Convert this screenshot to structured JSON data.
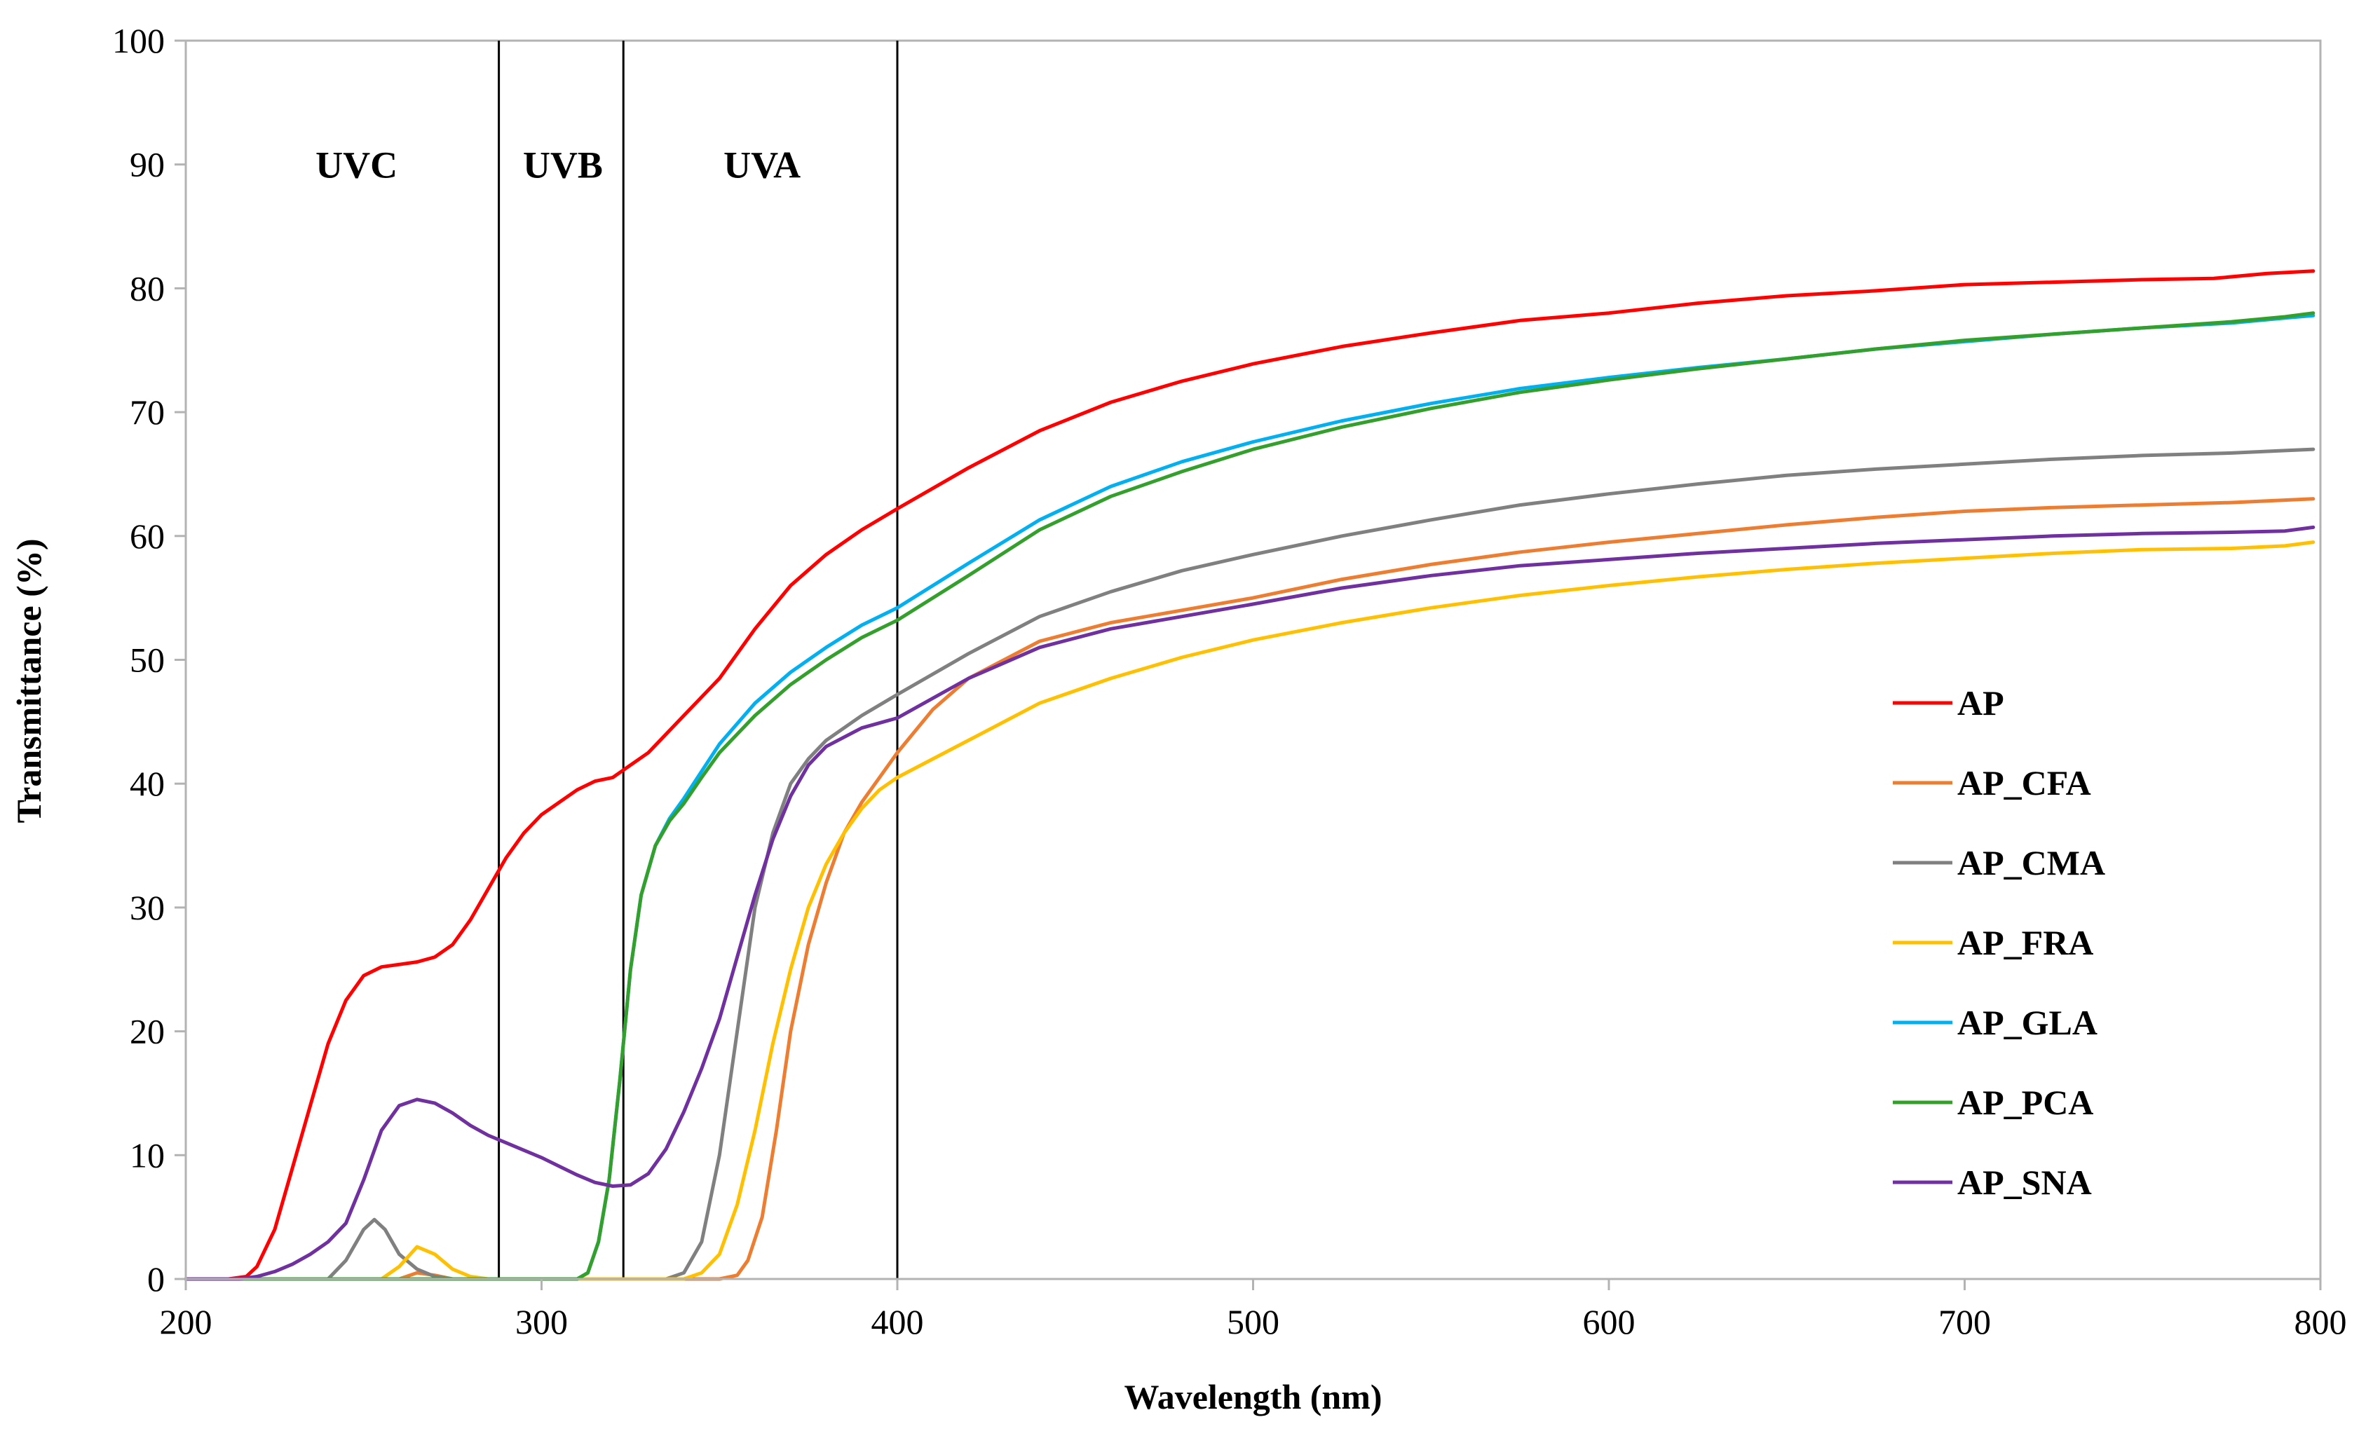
{
  "chart_data": {
    "type": "line",
    "title": "",
    "xlabel": "Wavelength (nm)",
    "ylabel": "Transmittance (%)",
    "xlim": [
      200,
      800
    ],
    "ylim": [
      0,
      100
    ],
    "x_ticks": [
      200,
      300,
      400,
      500,
      600,
      700,
      800
    ],
    "y_ticks": [
      0,
      10,
      20,
      30,
      40,
      50,
      60,
      70,
      80,
      90,
      100
    ],
    "x_tick_labels": [
      "200",
      "300",
      "400",
      "500",
      "600",
      "700",
      "800"
    ],
    "y_tick_labels": [
      "0",
      "10",
      "20",
      "30",
      "40",
      "50",
      "60",
      "70",
      "80",
      "90",
      "100"
    ],
    "grid": false,
    "legend_position": "right",
    "regions": [
      {
        "label": "UVC",
        "from": 200,
        "to": 288,
        "label_x": 248
      },
      {
        "label": "UVB",
        "from": 288,
        "to": 323,
        "label_x": 306
      },
      {
        "label": "UVA",
        "from": 323,
        "to": 400,
        "label_x": 362
      }
    ],
    "region_boundaries": [
      288,
      323,
      400
    ],
    "series": [
      {
        "name": "AP",
        "color": "#ff0000",
        "points": [
          [
            200,
            0
          ],
          [
            212,
            0
          ],
          [
            217,
            0.2
          ],
          [
            220,
            1
          ],
          [
            225,
            4
          ],
          [
            230,
            9
          ],
          [
            235,
            14
          ],
          [
            240,
            19
          ],
          [
            245,
            22.5
          ],
          [
            250,
            24.5
          ],
          [
            255,
            25.2
          ],
          [
            260,
            25.4
          ],
          [
            265,
            25.6
          ],
          [
            270,
            26
          ],
          [
            275,
            27
          ],
          [
            280,
            29
          ],
          [
            285,
            31.5
          ],
          [
            290,
            34
          ],
          [
            295,
            36
          ],
          [
            300,
            37.5
          ],
          [
            305,
            38.5
          ],
          [
            310,
            39.5
          ],
          [
            315,
            40.2
          ],
          [
            320,
            40.5
          ],
          [
            330,
            42.5
          ],
          [
            340,
            45.5
          ],
          [
            350,
            48.5
          ],
          [
            360,
            52.5
          ],
          [
            370,
            56
          ],
          [
            380,
            58.5
          ],
          [
            390,
            60.5
          ],
          [
            400,
            62.2
          ],
          [
            420,
            65.5
          ],
          [
            440,
            68.5
          ],
          [
            460,
            70.8
          ],
          [
            480,
            72.5
          ],
          [
            500,
            73.9
          ],
          [
            525,
            75.3
          ],
          [
            550,
            76.4
          ],
          [
            575,
            77.4
          ],
          [
            600,
            78
          ],
          [
            625,
            78.8
          ],
          [
            650,
            79.4
          ],
          [
            675,
            79.8
          ],
          [
            700,
            80.3
          ],
          [
            725,
            80.5
          ],
          [
            750,
            80.7
          ],
          [
            770,
            80.8
          ],
          [
            785,
            81.2
          ],
          [
            798,
            81.4
          ]
        ]
      },
      {
        "name": "AP_CFA",
        "color": "#ed7d31",
        "points": [
          [
            200,
            0
          ],
          [
            260,
            0
          ],
          [
            265,
            0.5
          ],
          [
            270,
            0.3
          ],
          [
            275,
            0
          ],
          [
            350,
            0
          ],
          [
            355,
            0.3
          ],
          [
            358,
            1.5
          ],
          [
            362,
            5
          ],
          [
            366,
            12
          ],
          [
            370,
            20
          ],
          [
            375,
            27
          ],
          [
            380,
            32
          ],
          [
            385,
            36
          ],
          [
            390,
            38.5
          ],
          [
            395,
            40.5
          ],
          [
            400,
            42.5
          ],
          [
            410,
            46
          ],
          [
            420,
            48.5
          ],
          [
            440,
            51.5
          ],
          [
            460,
            53
          ],
          [
            480,
            54
          ],
          [
            500,
            55
          ],
          [
            525,
            56.5
          ],
          [
            550,
            57.7
          ],
          [
            575,
            58.7
          ],
          [
            600,
            59.5
          ],
          [
            625,
            60.2
          ],
          [
            650,
            60.9
          ],
          [
            675,
            61.5
          ],
          [
            700,
            62
          ],
          [
            725,
            62.3
          ],
          [
            750,
            62.5
          ],
          [
            775,
            62.7
          ],
          [
            790,
            62.9
          ],
          [
            798,
            63
          ]
        ]
      },
      {
        "name": "AP_CMA",
        "color": "#808080",
        "points": [
          [
            200,
            0
          ],
          [
            240,
            0
          ],
          [
            245,
            1.5
          ],
          [
            250,
            4
          ],
          [
            253,
            4.8
          ],
          [
            256,
            4
          ],
          [
            260,
            2
          ],
          [
            265,
            0.8
          ],
          [
            270,
            0.2
          ],
          [
            275,
            0
          ],
          [
            335,
            0
          ],
          [
            340,
            0.5
          ],
          [
            345,
            3
          ],
          [
            350,
            10
          ],
          [
            355,
            20
          ],
          [
            360,
            30
          ],
          [
            365,
            36
          ],
          [
            370,
            40
          ],
          [
            375,
            42
          ],
          [
            380,
            43.5
          ],
          [
            390,
            45.5
          ],
          [
            400,
            47.2
          ],
          [
            420,
            50.5
          ],
          [
            440,
            53.5
          ],
          [
            460,
            55.5
          ],
          [
            480,
            57.2
          ],
          [
            500,
            58.5
          ],
          [
            525,
            60
          ],
          [
            550,
            61.3
          ],
          [
            575,
            62.5
          ],
          [
            600,
            63.4
          ],
          [
            625,
            64.2
          ],
          [
            650,
            64.9
          ],
          [
            675,
            65.4
          ],
          [
            700,
            65.8
          ],
          [
            725,
            66.2
          ],
          [
            750,
            66.5
          ],
          [
            775,
            66.7
          ],
          [
            790,
            66.9
          ],
          [
            798,
            67
          ]
        ]
      },
      {
        "name": "AP_FRA",
        "color": "#ffc000",
        "points": [
          [
            200,
            0
          ],
          [
            255,
            0
          ],
          [
            260,
            1
          ],
          [
            265,
            2.6
          ],
          [
            270,
            2
          ],
          [
            275,
            0.8
          ],
          [
            280,
            0.2
          ],
          [
            285,
            0
          ],
          [
            340,
            0
          ],
          [
            345,
            0.5
          ],
          [
            350,
            2
          ],
          [
            355,
            6
          ],
          [
            360,
            12
          ],
          [
            365,
            19
          ],
          [
            370,
            25
          ],
          [
            375,
            30
          ],
          [
            380,
            33.5
          ],
          [
            385,
            36
          ],
          [
            390,
            38
          ],
          [
            395,
            39.5
          ],
          [
            400,
            40.5
          ],
          [
            420,
            43.5
          ],
          [
            440,
            46.5
          ],
          [
            460,
            48.5
          ],
          [
            480,
            50.2
          ],
          [
            500,
            51.6
          ],
          [
            525,
            53
          ],
          [
            550,
            54.2
          ],
          [
            575,
            55.2
          ],
          [
            600,
            56
          ],
          [
            625,
            56.7
          ],
          [
            650,
            57.3
          ],
          [
            675,
            57.8
          ],
          [
            700,
            58.2
          ],
          [
            725,
            58.6
          ],
          [
            750,
            58.9
          ],
          [
            775,
            59
          ],
          [
            790,
            59.2
          ],
          [
            798,
            59.5
          ]
        ]
      },
      {
        "name": "AP_GLA",
        "color": "#00b0f0",
        "points": [
          [
            200,
            0
          ],
          [
            310,
            0
          ],
          [
            313,
            0.5
          ],
          [
            316,
            3
          ],
          [
            319,
            8
          ],
          [
            322,
            16
          ],
          [
            325,
            25
          ],
          [
            328,
            31
          ],
          [
            332,
            35
          ],
          [
            336,
            37.2
          ],
          [
            340,
            38.8
          ],
          [
            345,
            41
          ],
          [
            350,
            43.2
          ],
          [
            360,
            46.5
          ],
          [
            370,
            49
          ],
          [
            380,
            51
          ],
          [
            390,
            52.8
          ],
          [
            400,
            54.2
          ],
          [
            420,
            57.8
          ],
          [
            440,
            61.3
          ],
          [
            460,
            64
          ],
          [
            480,
            66
          ],
          [
            500,
            67.6
          ],
          [
            525,
            69.3
          ],
          [
            550,
            70.7
          ],
          [
            575,
            71.9
          ],
          [
            600,
            72.8
          ],
          [
            625,
            73.6
          ],
          [
            650,
            74.3
          ],
          [
            675,
            75.1
          ],
          [
            700,
            75.7
          ],
          [
            725,
            76.3
          ],
          [
            750,
            76.8
          ],
          [
            775,
            77.2
          ],
          [
            790,
            77.6
          ],
          [
            798,
            77.8
          ]
        ]
      },
      {
        "name": "AP_PCA",
        "color": "#33a02c",
        "points": [
          [
            200,
            0
          ],
          [
            310,
            0
          ],
          [
            313,
            0.5
          ],
          [
            316,
            3
          ],
          [
            319,
            8
          ],
          [
            322,
            16
          ],
          [
            325,
            25
          ],
          [
            328,
            31
          ],
          [
            332,
            35
          ],
          [
            336,
            37
          ],
          [
            340,
            38.4
          ],
          [
            345,
            40.5
          ],
          [
            350,
            42.5
          ],
          [
            360,
            45.5
          ],
          [
            370,
            48
          ],
          [
            380,
            50
          ],
          [
            390,
            51.8
          ],
          [
            400,
            53.2
          ],
          [
            420,
            56.8
          ],
          [
            440,
            60.5
          ],
          [
            460,
            63.2
          ],
          [
            480,
            65.2
          ],
          [
            500,
            67
          ],
          [
            525,
            68.8
          ],
          [
            550,
            70.3
          ],
          [
            575,
            71.6
          ],
          [
            600,
            72.6
          ],
          [
            625,
            73.5
          ],
          [
            650,
            74.3
          ],
          [
            675,
            75.1
          ],
          [
            700,
            75.8
          ],
          [
            725,
            76.3
          ],
          [
            750,
            76.8
          ],
          [
            775,
            77.3
          ],
          [
            790,
            77.7
          ],
          [
            798,
            78
          ]
        ]
      },
      {
        "name": "AP_SNA",
        "color": "#7030a0",
        "points": [
          [
            200,
            0
          ],
          [
            215,
            0
          ],
          [
            220,
            0.2
          ],
          [
            225,
            0.6
          ],
          [
            230,
            1.2
          ],
          [
            235,
            2
          ],
          [
            240,
            3
          ],
          [
            245,
            4.5
          ],
          [
            250,
            8
          ],
          [
            255,
            12
          ],
          [
            260,
            14
          ],
          [
            265,
            14.5
          ],
          [
            270,
            14.2
          ],
          [
            275,
            13.4
          ],
          [
            280,
            12.4
          ],
          [
            285,
            11.6
          ],
          [
            290,
            11
          ],
          [
            295,
            10.4
          ],
          [
            300,
            9.8
          ],
          [
            305,
            9.1
          ],
          [
            310,
            8.4
          ],
          [
            315,
            7.8
          ],
          [
            320,
            7.5
          ],
          [
            325,
            7.6
          ],
          [
            330,
            8.5
          ],
          [
            335,
            10.5
          ],
          [
            340,
            13.5
          ],
          [
            345,
            17
          ],
          [
            350,
            21
          ],
          [
            355,
            26
          ],
          [
            360,
            31
          ],
          [
            365,
            35.5
          ],
          [
            370,
            39
          ],
          [
            375,
            41.5
          ],
          [
            380,
            43
          ],
          [
            390,
            44.5
          ],
          [
            400,
            45.3
          ],
          [
            420,
            48.5
          ],
          [
            440,
            51
          ],
          [
            460,
            52.5
          ],
          [
            480,
            53.5
          ],
          [
            500,
            54.5
          ],
          [
            525,
            55.8
          ],
          [
            550,
            56.8
          ],
          [
            575,
            57.6
          ],
          [
            600,
            58.1
          ],
          [
            625,
            58.6
          ],
          [
            650,
            59
          ],
          [
            675,
            59.4
          ],
          [
            700,
            59.7
          ],
          [
            725,
            60
          ],
          [
            750,
            60.2
          ],
          [
            775,
            60.3
          ],
          [
            790,
            60.4
          ],
          [
            798,
            60.7
          ]
        ]
      }
    ]
  }
}
